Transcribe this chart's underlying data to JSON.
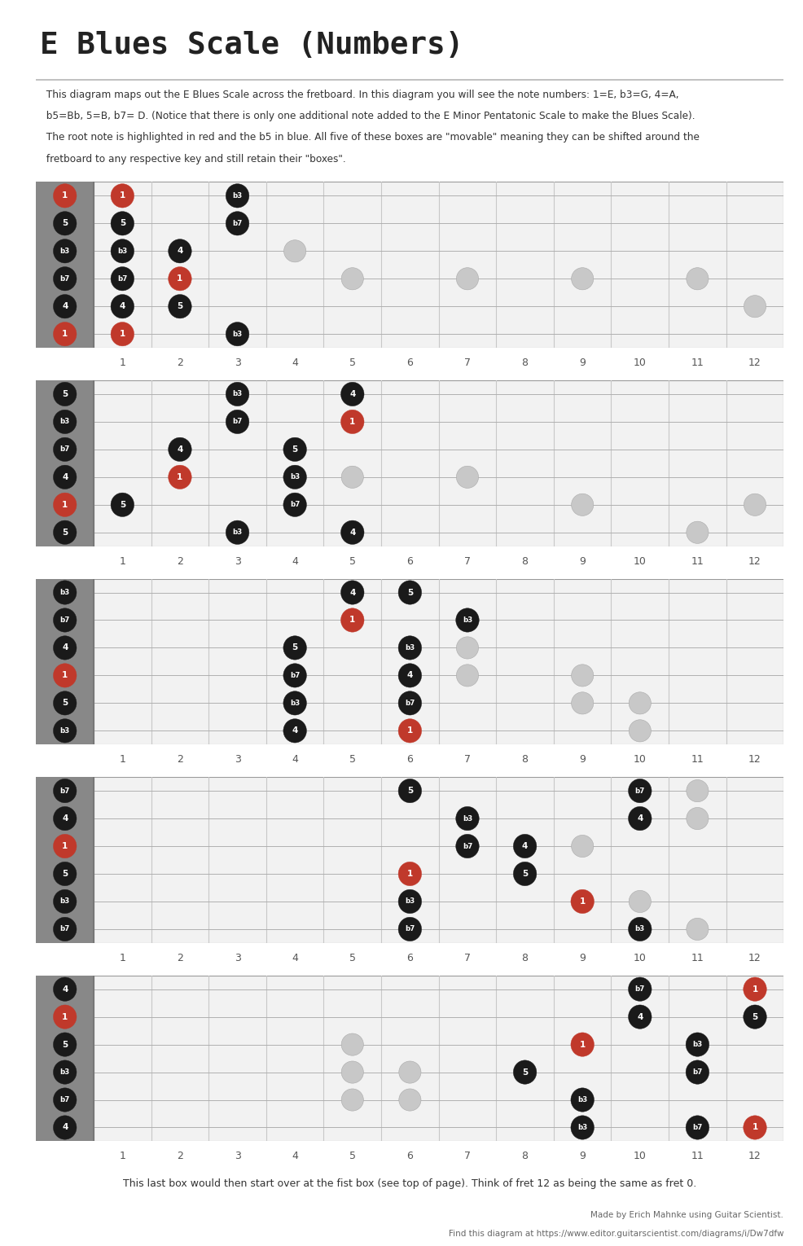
{
  "title": "E Blues Scale (Numbers)",
  "desc_lines": [
    "  This diagram maps out the E Blues Scale across the fretboard. In this diagram you will see the note numbers: 1=E, b3=G, 4=A,",
    "  b5=Bb, 5=B, b7= D. (Notice that there is only one additional note added to the E Minor Pentatonic Scale to make the Blues Scale).",
    "  The root note is highlighted in red and the b5 in blue. All five of these boxes are \"movable\" meaning they can be shifted around the",
    "  fretboard to any respective key and still retain their \"boxes\"."
  ],
  "footer_note": "This last box would then start over at the fist box (see top of page). Think of fret 12 as being the same as fret 0.",
  "footer_credit1": "Made by Erich Mahnke using Guitar Scientist.",
  "footer_credit2": "Find this diagram at https://www.editor.guitarscientist.com/diagrams/i/Dw7dfw",
  "diagrams": [
    {
      "string_labels": [
        "1",
        "5",
        "b3",
        "b7",
        "4",
        "1"
      ],
      "label_types": [
        "red",
        "black",
        "black",
        "black",
        "black",
        "red"
      ],
      "notes": [
        {
          "s": 0,
          "f": 1,
          "l": "1",
          "t": "red"
        },
        {
          "s": 1,
          "f": 1,
          "l": "5",
          "t": "black"
        },
        {
          "s": 2,
          "f": 1,
          "l": "b3",
          "t": "black"
        },
        {
          "s": 3,
          "f": 1,
          "l": "b7",
          "t": "black"
        },
        {
          "s": 4,
          "f": 1,
          "l": "4",
          "t": "black"
        },
        {
          "s": 5,
          "f": 1,
          "l": "1",
          "t": "red"
        },
        {
          "s": 0,
          "f": 3,
          "l": "b3",
          "t": "black"
        },
        {
          "s": 1,
          "f": 3,
          "l": "b7",
          "t": "black"
        },
        {
          "s": 2,
          "f": 2,
          "l": "4",
          "t": "black"
        },
        {
          "s": 3,
          "f": 2,
          "l": "1",
          "t": "red"
        },
        {
          "s": 4,
          "f": 2,
          "l": "5",
          "t": "black"
        },
        {
          "s": 5,
          "f": 3,
          "l": "b3",
          "t": "black"
        }
      ],
      "ghosts": [
        {
          "s": 2,
          "f": 4
        },
        {
          "s": 3,
          "f": 5
        },
        {
          "s": 3,
          "f": 7
        },
        {
          "s": 3,
          "f": 9
        },
        {
          "s": 4,
          "f": 12
        },
        {
          "s": 3,
          "f": 11
        }
      ]
    },
    {
      "string_labels": [
        "5",
        "b3",
        "b7",
        "4",
        "1",
        "5"
      ],
      "label_types": [
        "black",
        "black",
        "black",
        "black",
        "red",
        "black"
      ],
      "notes": [
        {
          "s": 0,
          "f": 3,
          "l": "b3",
          "t": "black"
        },
        {
          "s": 0,
          "f": 5,
          "l": "4",
          "t": "black"
        },
        {
          "s": 1,
          "f": 3,
          "l": "b7",
          "t": "black"
        },
        {
          "s": 1,
          "f": 5,
          "l": "1",
          "t": "red"
        },
        {
          "s": 2,
          "f": 2,
          "l": "4",
          "t": "black"
        },
        {
          "s": 2,
          "f": 4,
          "l": "5",
          "t": "black"
        },
        {
          "s": 3,
          "f": 2,
          "l": "1",
          "t": "red"
        },
        {
          "s": 3,
          "f": 4,
          "l": "b3",
          "t": "black"
        },
        {
          "s": 4,
          "f": 1,
          "l": "5",
          "t": "black"
        },
        {
          "s": 4,
          "f": 4,
          "l": "b7",
          "t": "black"
        },
        {
          "s": 5,
          "f": 3,
          "l": "b3",
          "t": "black"
        },
        {
          "s": 5,
          "f": 5,
          "l": "4",
          "t": "black"
        }
      ],
      "ghosts": [
        {
          "s": 2,
          "f": 4
        },
        {
          "s": 3,
          "f": 5
        },
        {
          "s": 3,
          "f": 7
        },
        {
          "s": 4,
          "f": 9
        },
        {
          "s": 4,
          "f": 12
        },
        {
          "s": 5,
          "f": 11
        }
      ]
    },
    {
      "string_labels": [
        "b3",
        "b7",
        "4",
        "1",
        "5",
        "b3"
      ],
      "label_types": [
        "black",
        "black",
        "black",
        "red",
        "black",
        "black"
      ],
      "notes": [
        {
          "s": 0,
          "f": 5,
          "l": "4",
          "t": "black"
        },
        {
          "s": 0,
          "f": 6,
          "l": "5",
          "t": "black"
        },
        {
          "s": 1,
          "f": 5,
          "l": "1",
          "t": "red"
        },
        {
          "s": 1,
          "f": 7,
          "l": "b3",
          "t": "black"
        },
        {
          "s": 2,
          "f": 4,
          "l": "5",
          "t": "black"
        },
        {
          "s": 2,
          "f": 6,
          "l": "b3",
          "t": "black"
        },
        {
          "s": 3,
          "f": 4,
          "l": "b7",
          "t": "black"
        },
        {
          "s": 3,
          "f": 6,
          "l": "4",
          "t": "black"
        },
        {
          "s": 4,
          "f": 4,
          "l": "b3",
          "t": "black"
        },
        {
          "s": 4,
          "f": 6,
          "l": "b7",
          "t": "black"
        },
        {
          "s": 5,
          "f": 4,
          "l": "4",
          "t": "black"
        },
        {
          "s": 5,
          "f": 6,
          "l": "1",
          "t": "red"
        }
      ],
      "ghosts": [
        {
          "s": 2,
          "f": 7
        },
        {
          "s": 3,
          "f": 7
        },
        {
          "s": 3,
          "f": 9
        },
        {
          "s": 4,
          "f": 9
        },
        {
          "s": 4,
          "f": 10
        },
        {
          "s": 5,
          "f": 10
        }
      ]
    },
    {
      "string_labels": [
        "b7",
        "4",
        "1",
        "5",
        "b3",
        "b7"
      ],
      "label_types": [
        "black",
        "black",
        "red",
        "black",
        "black",
        "black"
      ],
      "notes": [
        {
          "s": 0,
          "f": 6,
          "l": "5",
          "t": "black"
        },
        {
          "s": 0,
          "f": 10,
          "l": "b7",
          "t": "black"
        },
        {
          "s": 1,
          "f": 7,
          "l": "b3",
          "t": "black"
        },
        {
          "s": 1,
          "f": 10,
          "l": "4",
          "t": "black"
        },
        {
          "s": 2,
          "f": 7,
          "l": "b7",
          "t": "black"
        },
        {
          "s": 2,
          "f": 8,
          "l": "4",
          "t": "black"
        },
        {
          "s": 3,
          "f": 6,
          "l": "1",
          "t": "red"
        },
        {
          "s": 3,
          "f": 8,
          "l": "5",
          "t": "black"
        },
        {
          "s": 4,
          "f": 6,
          "l": "b3",
          "t": "black"
        },
        {
          "s": 4,
          "f": 9,
          "l": "1",
          "t": "red"
        },
        {
          "s": 5,
          "f": 6,
          "l": "b7",
          "t": "black"
        },
        {
          "s": 5,
          "f": 10,
          "l": "b3",
          "t": "black"
        }
      ],
      "ghosts": [
        {
          "s": 0,
          "f": 11
        },
        {
          "s": 1,
          "f": 11
        },
        {
          "s": 2,
          "f": 9
        },
        {
          "s": 4,
          "f": 10
        },
        {
          "s": 5,
          "f": 11
        }
      ]
    },
    {
      "string_labels": [
        "4",
        "1",
        "5",
        "b3",
        "b7",
        "4"
      ],
      "label_types": [
        "black",
        "red",
        "black",
        "black",
        "black",
        "black"
      ],
      "notes": [
        {
          "s": 0,
          "f": 10,
          "l": "b7",
          "t": "black"
        },
        {
          "s": 0,
          "f": 12,
          "l": "1",
          "t": "red"
        },
        {
          "s": 1,
          "f": 10,
          "l": "4",
          "t": "black"
        },
        {
          "s": 1,
          "f": 12,
          "l": "5",
          "t": "black"
        },
        {
          "s": 2,
          "f": 9,
          "l": "1",
          "t": "red"
        },
        {
          "s": 2,
          "f": 11,
          "l": "b3",
          "t": "black"
        },
        {
          "s": 3,
          "f": 8,
          "l": "5",
          "t": "black"
        },
        {
          "s": 3,
          "f": 11,
          "l": "b7",
          "t": "black"
        },
        {
          "s": 4,
          "f": 9,
          "l": "b3",
          "t": "black"
        },
        {
          "s": 5,
          "f": 9,
          "l": "b3",
          "t": "black"
        },
        {
          "s": 5,
          "f": 11,
          "l": "b7",
          "t": "black"
        },
        {
          "s": 5,
          "f": 12,
          "l": "1",
          "t": "red"
        }
      ],
      "ghosts": [
        {
          "s": 2,
          "f": 5
        },
        {
          "s": 3,
          "f": 5
        },
        {
          "s": 3,
          "f": 6
        },
        {
          "s": 4,
          "f": 5
        },
        {
          "s": 4,
          "f": 6
        }
      ]
    }
  ]
}
